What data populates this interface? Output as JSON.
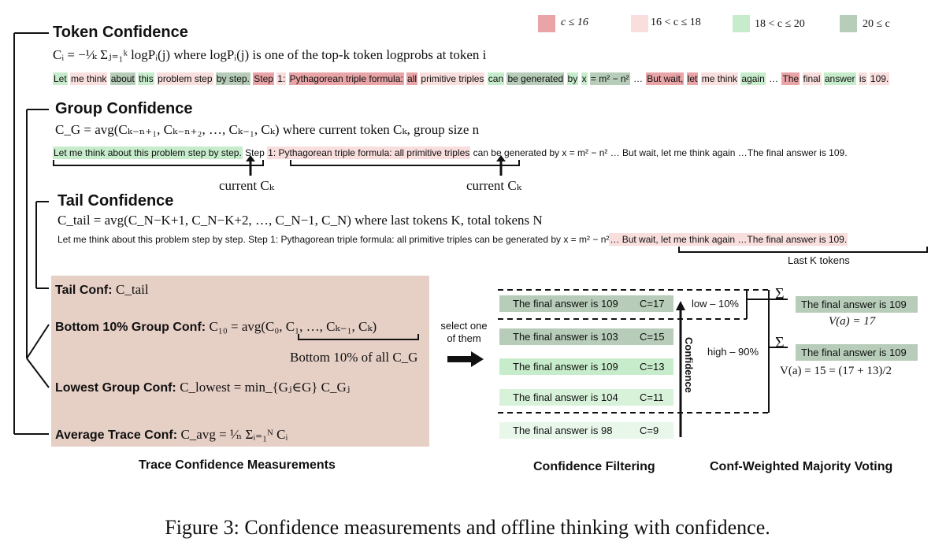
{
  "legend": [
    {
      "label": "c ≤ 16",
      "color": "#e8a4a7"
    },
    {
      "label": "16 < c ≤ 18",
      "color": "#f8dedd"
    },
    {
      "label": "18 < c ≤ 20",
      "color": "#c7eccb"
    },
    {
      "label": "20 ≤ c",
      "color": "#b7cdb9"
    }
  ],
  "token_confidence": {
    "title": "Token Confidence",
    "formula": "Cᵢ = −¹⁄ₖ Σⱼ₌₁ᵏ logPᵢ(j) where logPᵢ(j) is one of the top-k token logprobs at token i",
    "tokens": [
      {
        "t": "Let",
        "c": "c3"
      },
      {
        "t": "me think",
        "c": "c2"
      },
      {
        "t": "about",
        "c": "c4"
      },
      {
        "t": "this",
        "c": "c3"
      },
      {
        "t": "problem step",
        "c": "c2"
      },
      {
        "t": "by step.",
        "c": "c4"
      },
      {
        "t": "Step",
        "c": "c1"
      },
      {
        "t": "1:",
        "c": "c2"
      },
      {
        "t": "Pythagorean triple formula:",
        "c": "c1"
      },
      {
        "t": "all",
        "c": "c1"
      },
      {
        "t": "primitive triples",
        "c": "c2"
      },
      {
        "t": "can",
        "c": "c3"
      },
      {
        "t": "be generated",
        "c": "c4"
      },
      {
        "t": "by",
        "c": "c3"
      },
      {
        "t": "x",
        "c": "c3"
      },
      {
        "t": "= m² − n²",
        "c": "c4"
      },
      {
        "t": "…",
        "c": ""
      },
      {
        "t": "But wait,",
        "c": "c1"
      },
      {
        "t": "let",
        "c": "c1"
      },
      {
        "t": "me think",
        "c": "c2"
      },
      {
        "t": "again",
        "c": "c3"
      },
      {
        "t": "…",
        "c": ""
      },
      {
        "t": "The",
        "c": "c1"
      },
      {
        "t": "final",
        "c": "c2"
      },
      {
        "t": "answer",
        "c": "c3"
      },
      {
        "t": "is",
        "c": "c2"
      },
      {
        "t": "109.",
        "c": "c2"
      }
    ]
  },
  "group_confidence": {
    "title": "Group Confidence",
    "formula": "C_G = avg(Cₖ₋ₙ₊₁, Cₖ₋ₙ₊₂, …, Cₖ₋₁, Cₖ) where current token Cₖ, group size n",
    "seg1": "Let me think about this problem step by step.",
    "seg_mid": " Step ",
    "seg2": "1: Pythagorean triple formula: all primitive triples",
    "seg_rest": " can be generated by x = m² − n² … But wait, let me think again …The final answer is 109.",
    "current_label_1": "current Cₖ",
    "current_label_2": "current  Cₖ"
  },
  "tail_confidence": {
    "title": "Tail Confidence",
    "formula": "C_tail = avg(C_N−K+1, C_N−K+2, …, C_N−1, C_N) where last tokens K, total tokens N",
    "text_main": "Let me think about this problem step by step. Step 1: Pythagorean triple formula: all primitive triples can be generated by x = m² − n²",
    "text_tail": "… But wait, let me think again …The final answer is 109.",
    "tail_label": "Last K tokens"
  },
  "measurements": {
    "tail": {
      "label": "Tail Conf:",
      "formula": "C_tail"
    },
    "bottom": {
      "label": "Bottom 10% Group Conf:",
      "formula": "C₁₀ = avg(C₀, C₁, …, Cₖ₋₁, Cₖ)",
      "note": "Bottom 10% of all C_G"
    },
    "lowest": {
      "label": "Lowest Group Conf:",
      "formula": "C_lowest = min_{Gⱼ∈G} C_Gⱼ"
    },
    "average": {
      "label": "Average Trace Conf:",
      "formula": "C_avg = ¹⁄ₙ Σᵢ₌₁ᴺ Cᵢ"
    },
    "caption": "Trace Confidence Measurements"
  },
  "select_label": "select one of them",
  "filtering": {
    "answers": [
      {
        "text": "The final answer is 109",
        "conf": "C=17",
        "color": "#b7cdb9"
      },
      {
        "text": "The final answer is 103",
        "conf": "C=15",
        "color": "#b7cdb9"
      },
      {
        "text": "The final answer is 109",
        "conf": "C=13",
        "color": "#c7eccb"
      },
      {
        "text": "The final answer is 104",
        "conf": "C=11",
        "color": "#d8f2da"
      },
      {
        "text": "The final answer is 98",
        "conf": "C=9",
        "color": "#e9f7ea"
      }
    ],
    "low_label": "low – 10%",
    "high_label": "high – 90%",
    "axis_label": "Confidence",
    "caption": "Confidence Filtering"
  },
  "voting": {
    "sigma": "Σ",
    "result_low": {
      "text": "The final answer is 109",
      "value": "V(a) = 17"
    },
    "result_high": {
      "text": "The final answer is 109",
      "value": "V(a) = 15 = (17 + 13)/2"
    },
    "caption": "Conf-Weighted Majority Voting"
  },
  "figure_caption": "Figure 3: Confidence measurements and offline thinking with confidence."
}
